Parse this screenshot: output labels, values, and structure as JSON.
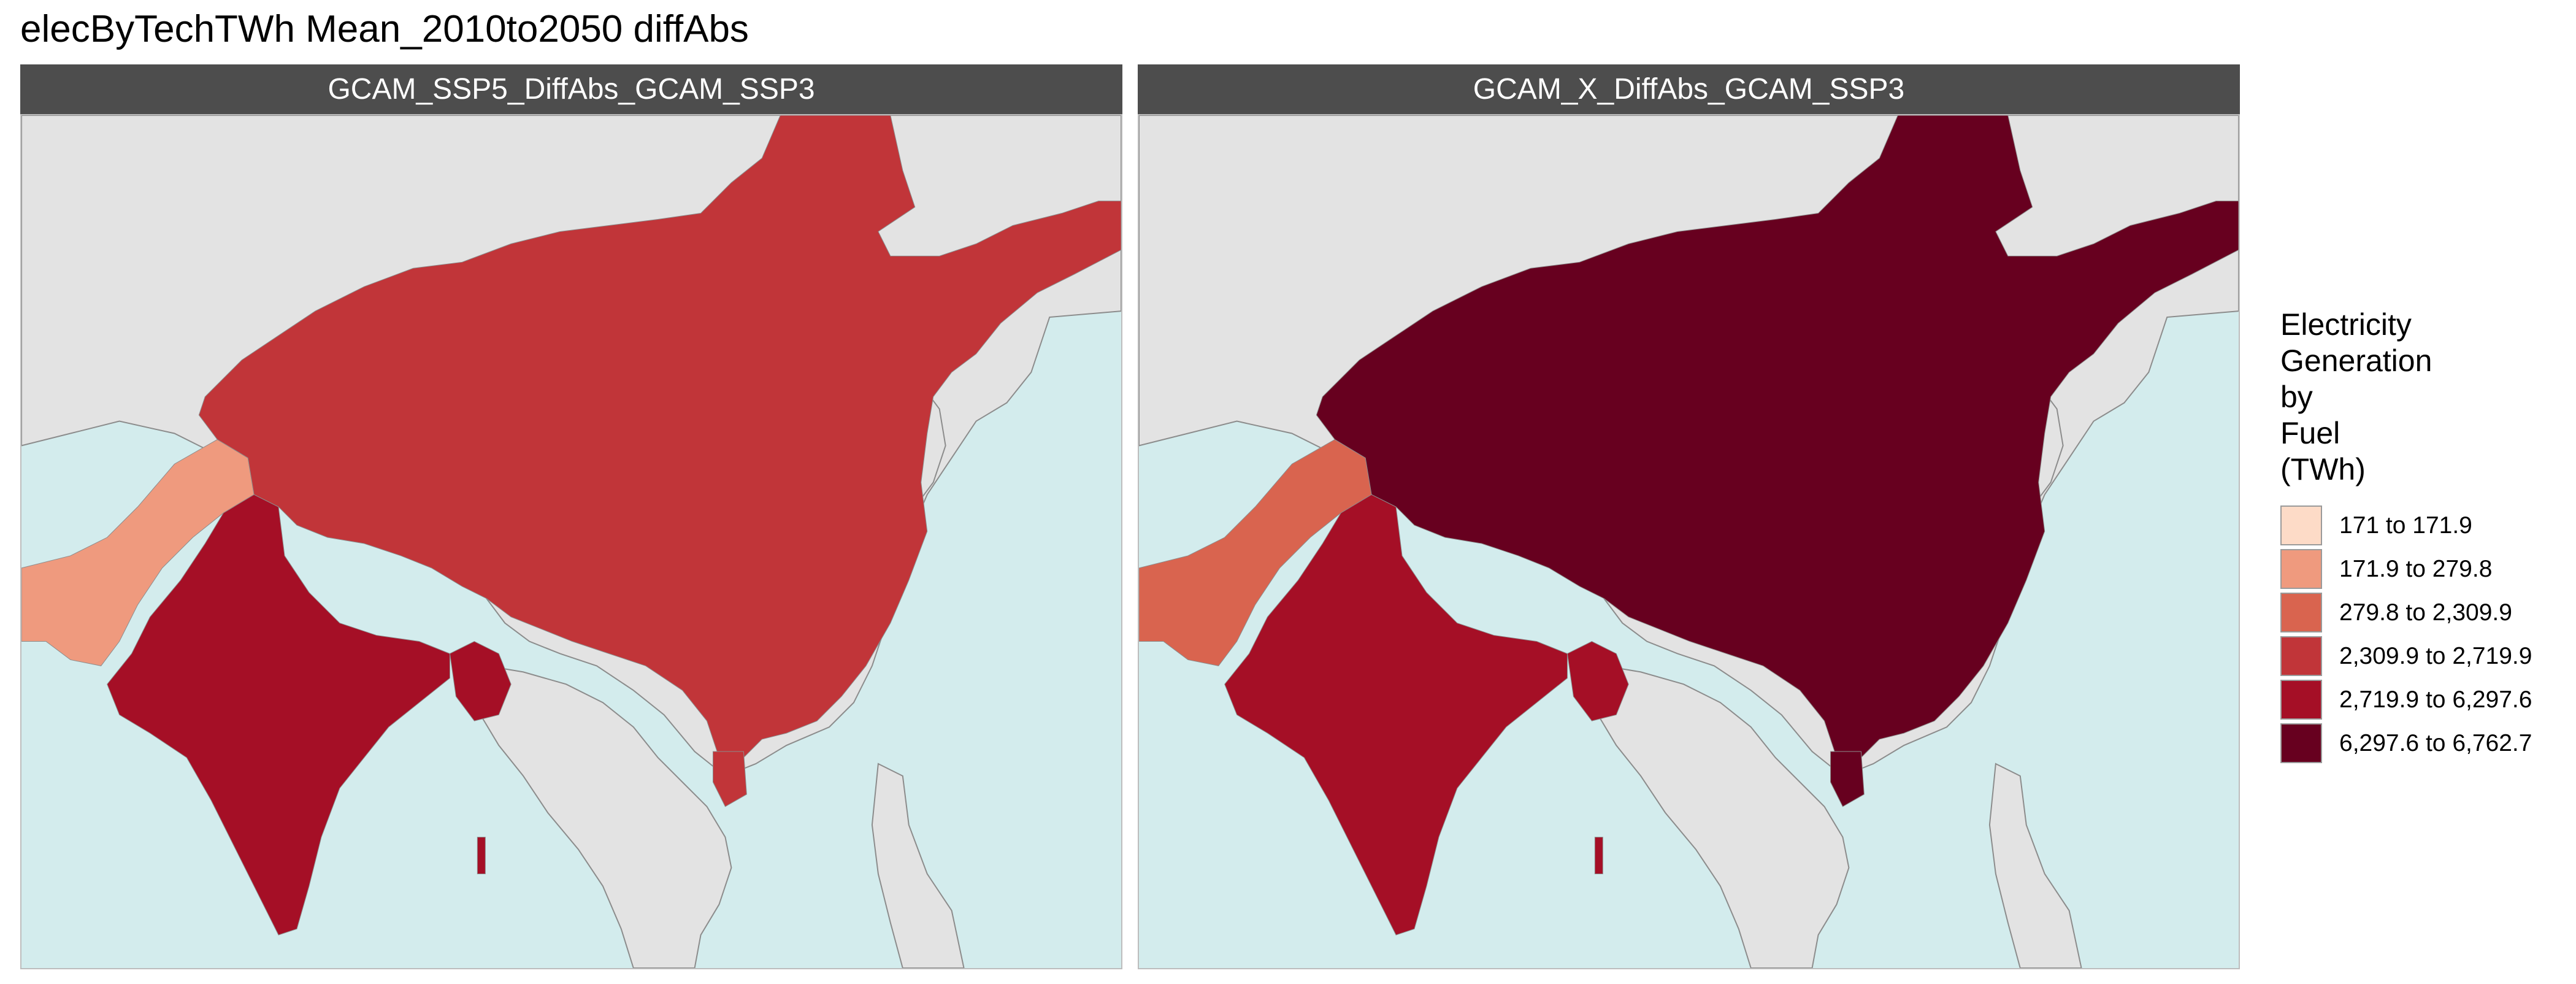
{
  "title": "elecByTechTWh Mean_2010to2050 diffAbs",
  "panels": [
    {
      "strip_label": "GCAM_SSP5_DiffAbs_GCAM_SSP3",
      "fills": {
        "Pakistan": "#ef9a7e",
        "India": "#a50f26",
        "China": "#c13539",
        "Bangladesh": "#a50f26"
      }
    },
    {
      "strip_label": "GCAM_X_DiffAbs_GCAM_SSP3",
      "fills": {
        "Pakistan": "#d9644f",
        "India": "#a50f26",
        "China": "#67001f",
        "Bangladesh": "#a50f26"
      }
    }
  ],
  "map_colors": {
    "ocean": "#d3eced",
    "land_no_data": "#e3e3e3",
    "border": "#8c8c8c"
  },
  "legend": {
    "title_lines": [
      "Electricity",
      "Generation",
      "by",
      "Fuel",
      "(TWh)"
    ],
    "items": [
      {
        "label": "171 to 171.9",
        "color": "#fddbc7"
      },
      {
        "label": "171.9 to 279.8",
        "color": "#ef9a7e"
      },
      {
        "label": "279.8 to 2,309.9",
        "color": "#d9644f"
      },
      {
        "label": "2,309.9 to 2,719.9",
        "color": "#c13539"
      },
      {
        "label": "2,719.9 to 6,297.6",
        "color": "#a50f26"
      },
      {
        "label": "6,297.6 to 6,762.7",
        "color": "#67001f"
      }
    ]
  }
}
